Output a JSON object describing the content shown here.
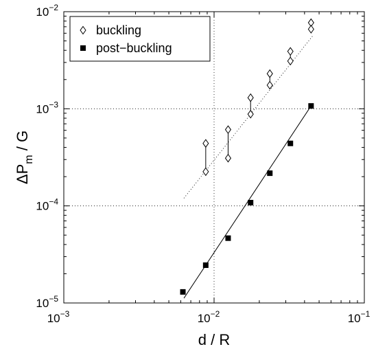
{
  "chart_data": {
    "type": "scatter",
    "xscale": "log",
    "yscale": "log",
    "xlim": [
      0.001,
      0.1
    ],
    "ylim": [
      1e-05,
      0.01
    ],
    "xlabel": "d / R",
    "ylabel_main": "ΔP",
    "ylabel_sub": "m",
    "ylabel_tail": " / G",
    "grid": "dotted at 10^-2 (x) and 10^-3, 10^-4 (y)",
    "legend_position": "top-left",
    "x_ticks": [
      {
        "value": 0.001,
        "base": "10",
        "exp": "−3"
      },
      {
        "value": 0.01,
        "base": "10",
        "exp": "−2"
      },
      {
        "value": 0.1,
        "base": "10",
        "exp": "−1"
      }
    ],
    "y_ticks": [
      {
        "value": 1e-05,
        "base": "10",
        "exp": "−5"
      },
      {
        "value": 0.0001,
        "base": "10",
        "exp": "−4"
      },
      {
        "value": 0.001,
        "base": "10",
        "exp": "−3"
      },
      {
        "value": 0.01,
        "base": "10",
        "exp": "−2"
      }
    ],
    "series": [
      {
        "name": "buckling",
        "marker": "diamond-open",
        "pairs": [
          {
            "x": 0.0088,
            "y_low": 0.000225,
            "y_high": 0.00044
          },
          {
            "x": 0.0124,
            "y_low": 0.00031,
            "y_high": 0.00061
          },
          {
            "x": 0.0175,
            "y_low": 0.00088,
            "y_high": 0.0013
          },
          {
            "x": 0.0235,
            "y_low": 0.00175,
            "y_high": 0.0023
          },
          {
            "x": 0.0322,
            "y_low": 0.0031,
            "y_high": 0.0039
          },
          {
            "x": 0.0442,
            "y_low": 0.0066,
            "y_high": 0.0077
          }
        ],
        "fit_line": {
          "style": "dotted",
          "x": [
            0.0063,
            0.046
          ],
          "y": [
            0.00012,
            0.0058
          ]
        }
      },
      {
        "name": "post−buckling",
        "marker": "square-filled",
        "x": [
          0.0062,
          0.0088,
          0.0124,
          0.0175,
          0.0235,
          0.0322,
          0.0442
        ],
        "y": [
          1.3e-05,
          2.45e-05,
          4.65e-05,
          0.000108,
          0.000217,
          0.00044,
          0.00107
        ],
        "fit_line": {
          "style": "solid",
          "x": [
            0.0063,
            0.0442
          ],
          "y": [
            1.12e-05,
            0.00107
          ]
        }
      }
    ]
  },
  "legend": {
    "entries": [
      {
        "label": "buckling",
        "marker": "diamond-open"
      },
      {
        "label": "post−buckling",
        "marker": "square-filled"
      }
    ]
  }
}
